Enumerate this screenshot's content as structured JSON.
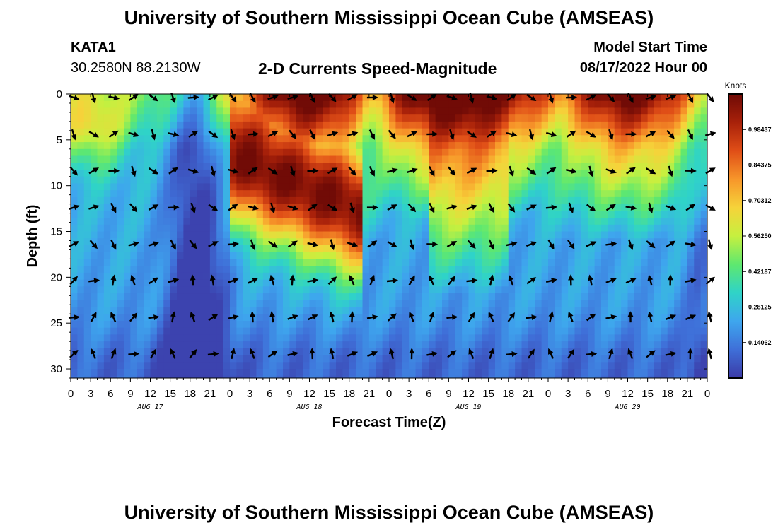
{
  "header": {
    "title": "University of Southern Mississippi Ocean Cube (AMSEAS)",
    "station": "KATA1",
    "coords": "30.2580N  88.2130W",
    "subtitle": "2-D Currents Speed-Magnitude",
    "model_start_label": "Model Start Time",
    "model_start_value": "08/17/2022 Hour 00"
  },
  "footer": {
    "title": "University of Southern Mississippi Ocean Cube (AMSEAS)"
  },
  "chart_data": {
    "type": "heatmap",
    "title": "2-D Currents Speed-Magnitude",
    "xlabel": "Forecast Time(Z)",
    "ylabel": "Depth (ft)",
    "x_hours": [
      0,
      96
    ],
    "x_tick_labels": [
      "0",
      "3",
      "6",
      "9",
      "12",
      "15",
      "18",
      "21",
      "0",
      "3",
      "6",
      "9",
      "12",
      "15",
      "18",
      "21",
      "0",
      "3",
      "6",
      "9",
      "12",
      "15",
      "18",
      "21",
      "0",
      "3",
      "6",
      "9",
      "12",
      "15",
      "18",
      "21",
      "0"
    ],
    "day_labels": [
      {
        "label": "AUG 17",
        "hour": 12
      },
      {
        "label": "AUG 18",
        "hour": 36
      },
      {
        "label": "AUG 19",
        "hour": 60
      },
      {
        "label": "AUG 20",
        "hour": 84
      }
    ],
    "ylim": [
      0,
      31
    ],
    "y_ticks": [
      0,
      5,
      10,
      15,
      20,
      25,
      30
    ],
    "colorbar": {
      "unit": "Knots",
      "min": 0.0,
      "max": 1.125,
      "tick_labels": [
        "0.98437",
        "0.84375",
        "0.70312",
        "0.56250",
        "0.42187",
        "0.28125",
        "0.14062"
      ],
      "tick_values": [
        0.984375,
        0.84375,
        0.703125,
        0.5625,
        0.421875,
        0.28125,
        0.140625
      ],
      "colors": [
        "#3b3aa6",
        "#3f6fd8",
        "#3ea6ee",
        "#2fd3c8",
        "#5ee86f",
        "#c6f03f",
        "#f6d33a",
        "#f7962a",
        "#e04e17",
        "#a8210a",
        "#6e0a06"
      ]
    },
    "arrow_depths": [
      0,
      4,
      8,
      12,
      16,
      20,
      24,
      28
    ],
    "arrow_hours": [
      0,
      3,
      6,
      9,
      12,
      15,
      18,
      21,
      24,
      27,
      30,
      33,
      36,
      39,
      42,
      45,
      48,
      51,
      54,
      57,
      60,
      63,
      66,
      69,
      72,
      75,
      78,
      81,
      84,
      87,
      90,
      93,
      96
    ]
  }
}
